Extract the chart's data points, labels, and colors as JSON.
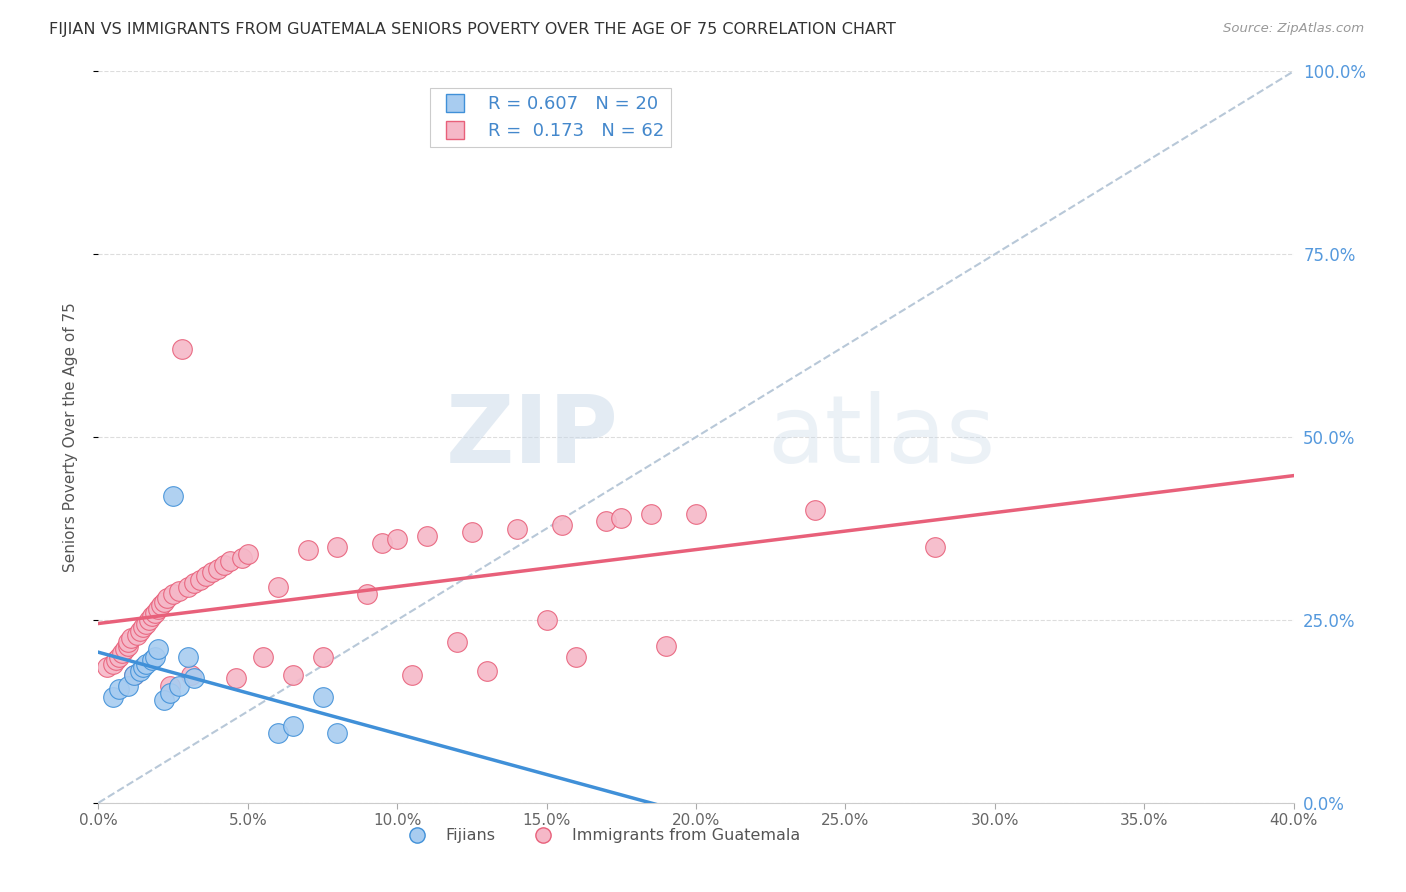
{
  "title": "FIJIAN VS IMMIGRANTS FROM GUATEMALA SENIORS POVERTY OVER THE AGE OF 75 CORRELATION CHART",
  "source": "Source: ZipAtlas.com",
  "ylabel": "Seniors Poverty Over the Age of 75",
  "xlim": [
    0.0,
    0.4
  ],
  "ylim": [
    0.0,
    1.0
  ],
  "xticks": [
    0.0,
    0.05,
    0.1,
    0.15,
    0.2,
    0.25,
    0.3,
    0.35,
    0.4
  ],
  "yticks": [
    0.0,
    0.25,
    0.5,
    0.75,
    1.0
  ],
  "fijian_color": "#a8ccf0",
  "guatemala_color": "#f5b8c8",
  "fijian_R": 0.607,
  "fijian_N": 20,
  "guatemala_R": 0.173,
  "guatemala_N": 62,
  "fijian_trend_color": "#4090d8",
  "guatemala_trend_color": "#e8607a",
  "diagonal_color": "#b8c8d8",
  "watermark_zip": "ZIP",
  "watermark_atlas": "atlas",
  "fijian_x": [
    0.005,
    0.007,
    0.01,
    0.012,
    0.014,
    0.015,
    0.016,
    0.018,
    0.019,
    0.02,
    0.022,
    0.024,
    0.025,
    0.027,
    0.03,
    0.032,
    0.06,
    0.065,
    0.075,
    0.08
  ],
  "fijian_y": [
    0.145,
    0.155,
    0.16,
    0.175,
    0.18,
    0.185,
    0.19,
    0.195,
    0.2,
    0.21,
    0.14,
    0.15,
    0.42,
    0.16,
    0.2,
    0.17,
    0.095,
    0.105,
    0.145,
    0.095
  ],
  "guatemala_x": [
    0.003,
    0.005,
    0.006,
    0.007,
    0.008,
    0.009,
    0.01,
    0.01,
    0.011,
    0.012,
    0.013,
    0.014,
    0.015,
    0.016,
    0.017,
    0.018,
    0.019,
    0.02,
    0.021,
    0.022,
    0.023,
    0.024,
    0.025,
    0.027,
    0.028,
    0.03,
    0.031,
    0.032,
    0.034,
    0.036,
    0.038,
    0.04,
    0.042,
    0.044,
    0.046,
    0.048,
    0.05,
    0.055,
    0.06,
    0.065,
    0.07,
    0.075,
    0.08,
    0.09,
    0.095,
    0.1,
    0.105,
    0.11,
    0.12,
    0.125,
    0.13,
    0.14,
    0.15,
    0.155,
    0.16,
    0.17,
    0.175,
    0.185,
    0.19,
    0.2,
    0.24,
    0.28
  ],
  "guatemala_y": [
    0.185,
    0.19,
    0.195,
    0.2,
    0.205,
    0.21,
    0.215,
    0.22,
    0.225,
    0.175,
    0.23,
    0.235,
    0.24,
    0.245,
    0.25,
    0.255,
    0.26,
    0.265,
    0.27,
    0.275,
    0.28,
    0.16,
    0.285,
    0.29,
    0.62,
    0.295,
    0.175,
    0.3,
    0.305,
    0.31,
    0.315,
    0.32,
    0.325,
    0.33,
    0.17,
    0.335,
    0.34,
    0.2,
    0.295,
    0.175,
    0.345,
    0.2,
    0.35,
    0.285,
    0.355,
    0.36,
    0.175,
    0.365,
    0.22,
    0.37,
    0.18,
    0.375,
    0.25,
    0.38,
    0.2,
    0.385,
    0.39,
    0.395,
    0.215,
    0.395,
    0.4,
    0.35
  ]
}
